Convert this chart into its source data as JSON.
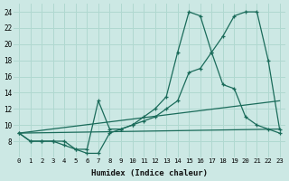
{
  "xlabel": "Humidex (Indice chaleur)",
  "bg_color": "#cce8e4",
  "line_color": "#1a6b5a",
  "grid_color": "#b0d8d0",
  "xlim": [
    -0.5,
    23.5
  ],
  "ylim": [
    6,
    25
  ],
  "xticks": [
    0,
    1,
    2,
    3,
    4,
    5,
    6,
    7,
    8,
    9,
    10,
    11,
    12,
    13,
    14,
    15,
    16,
    17,
    18,
    19,
    20,
    21,
    22,
    23
  ],
  "yticks": [
    8,
    10,
    12,
    14,
    16,
    18,
    20,
    22,
    24
  ],
  "lines": [
    {
      "x": [
        0,
        1,
        2,
        3,
        4,
        5,
        6,
        7,
        8,
        9,
        10,
        11,
        12,
        13,
        14,
        15,
        16,
        17,
        18,
        19,
        20,
        21,
        22,
        23
      ],
      "y": [
        9,
        8,
        8,
        8,
        7.5,
        7,
        6.5,
        6.5,
        9,
        9.5,
        10,
        11,
        12,
        13.5,
        19,
        24,
        23.5,
        19,
        15,
        14.5,
        11,
        10,
        9.5,
        9
      ],
      "has_markers": true
    },
    {
      "x": [
        0,
        1,
        2,
        3,
        4,
        5,
        6,
        7,
        8,
        9,
        10,
        11,
        12,
        13,
        14,
        15,
        16,
        17,
        18,
        19,
        20,
        21,
        22,
        23
      ],
      "y": [
        9,
        8,
        8,
        8,
        8,
        7,
        7,
        13,
        9.5,
        9.5,
        10,
        10.5,
        11,
        12,
        13,
        16.5,
        17,
        19,
        21,
        23.5,
        24,
        24,
        18,
        9.5
      ],
      "has_markers": true
    },
    {
      "x": [
        0,
        23
      ],
      "y": [
        9,
        9.5
      ],
      "has_markers": false
    },
    {
      "x": [
        0,
        23
      ],
      "y": [
        9,
        13
      ],
      "has_markers": false
    }
  ]
}
